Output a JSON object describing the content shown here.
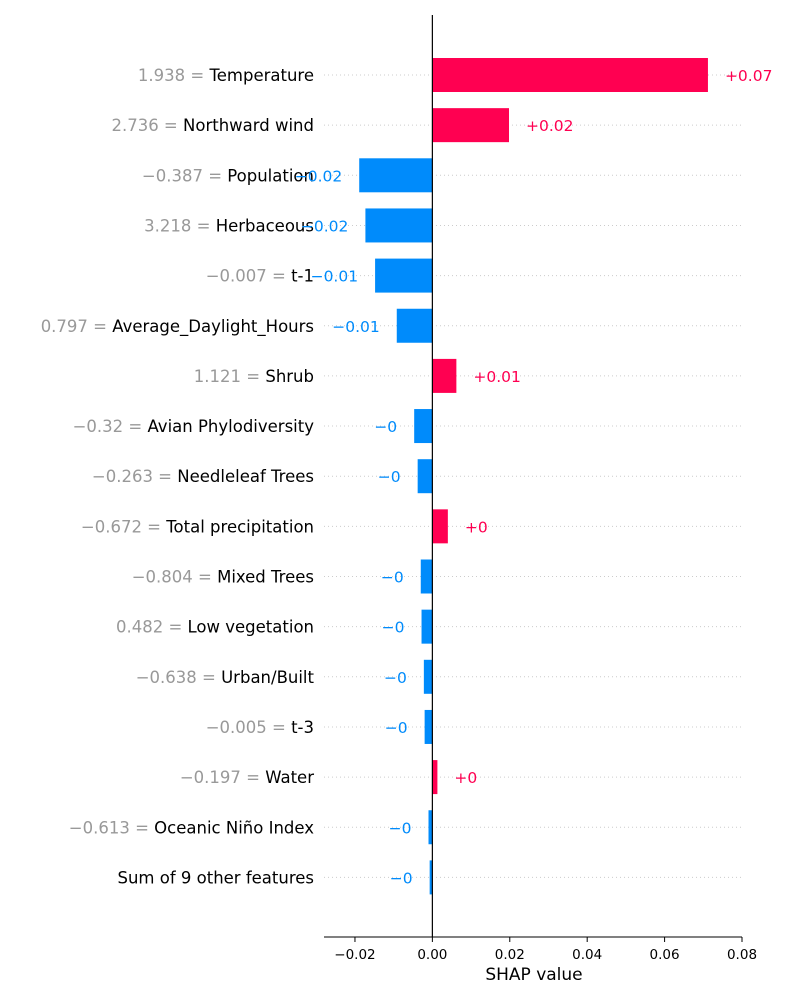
{
  "chart_data": {
    "type": "bar",
    "orientation": "horizontal",
    "xlabel": "SHAP value",
    "xlim": [
      -0.028,
      0.08
    ],
    "xticks": [
      {
        "value": -0.02,
        "label": "−0.02"
      },
      {
        "value": 0.0,
        "label": "0.00"
      },
      {
        "value": 0.02,
        "label": "0.02"
      },
      {
        "value": 0.04,
        "label": "0.04"
      },
      {
        "value": 0.06,
        "label": "0.06"
      },
      {
        "value": 0.08,
        "label": "0.08"
      }
    ],
    "grid": "horizontal dotted",
    "colors": {
      "positive": "#ff0051",
      "negative": "#008bfb",
      "feature_value": "#999999",
      "feature_name": "#000000"
    },
    "bars": [
      {
        "feature_value": "1.938 = ",
        "feature": "Temperature",
        "shap": 0.0712,
        "label": "+0.07"
      },
      {
        "feature_value": "2.736 = ",
        "feature": "Northward wind",
        "shap": 0.0198,
        "label": "+0.02"
      },
      {
        "feature_value": "−0.387 = ",
        "feature": "Population",
        "shap": -0.0189,
        "label": "−0.02"
      },
      {
        "feature_value": "3.218 = ",
        "feature": "Herbaceous",
        "shap": -0.0173,
        "label": "−0.02"
      },
      {
        "feature_value": "−0.007 = ",
        "feature": "t-1",
        "shap": -0.0148,
        "label": "−0.01"
      },
      {
        "feature_value": "0.797 = ",
        "feature": "Average_Daylight_Hours",
        "shap": -0.0092,
        "label": "−0.01"
      },
      {
        "feature_value": "1.121 = ",
        "feature": "Shrub",
        "shap": 0.0062,
        "label": "+0.01"
      },
      {
        "feature_value": "−0.32 = ",
        "feature": "Avian Phylodiversity",
        "shap": -0.0047,
        "label": "−0"
      },
      {
        "feature_value": "−0.263 = ",
        "feature": "Needleleaf Trees",
        "shap": -0.0038,
        "label": "−0"
      },
      {
        "feature_value": "−0.672 = ",
        "feature": "Total precipitation",
        "shap": 0.004,
        "label": "+0"
      },
      {
        "feature_value": "−0.804 = ",
        "feature": "Mixed Trees",
        "shap": -0.003,
        "label": "−0"
      },
      {
        "feature_value": "0.482 = ",
        "feature": "Low vegetation",
        "shap": -0.0028,
        "label": "−0"
      },
      {
        "feature_value": "−0.638 = ",
        "feature": "Urban/Built",
        "shap": -0.0022,
        "label": "−0"
      },
      {
        "feature_value": "−0.005 = ",
        "feature": "t-3",
        "shap": -0.002,
        "label": "−0"
      },
      {
        "feature_value": "−0.197 = ",
        "feature": "Water",
        "shap": 0.0013,
        "label": "+0"
      },
      {
        "feature_value": "−0.613 = ",
        "feature": "Oceanic Niño Index",
        "shap": -0.001,
        "label": "−0"
      },
      {
        "feature_value": "",
        "feature": "Sum of 9 other features",
        "shap": -0.0007,
        "label": "−0"
      }
    ]
  }
}
